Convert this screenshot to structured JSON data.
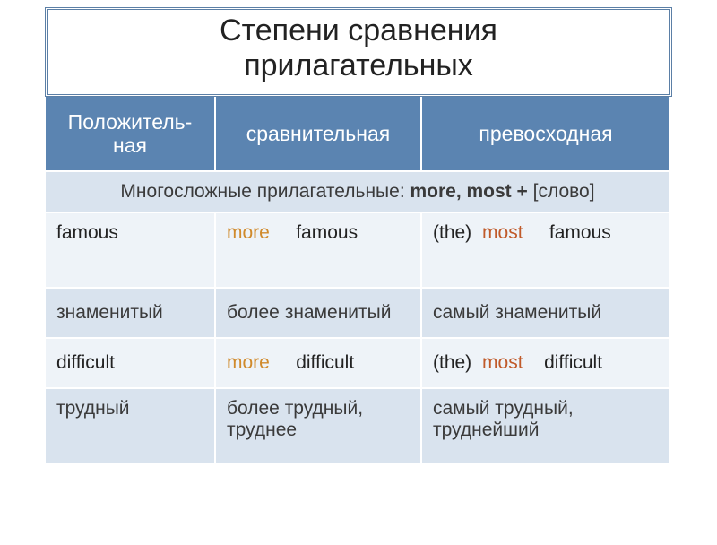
{
  "title_line1": "Степени сравнения",
  "title_line2": "прилагательных",
  "hdr_pos_line1": "Положитель-",
  "hdr_pos_line2": "ная",
  "hdr_comp": "сравнительная",
  "hdr_sup": "превосходная",
  "rule_prefix": "Многосложные прилагательные: ",
  "rule_bold": "more, most + ",
  "rule_suffix": "[слово]",
  "row1": {
    "pos": "famous",
    "comp_more": "more",
    "comp_word": "famous",
    "sup_the": "(the)",
    "sup_most": "most",
    "sup_word": "famous"
  },
  "row1_ru": {
    "pos": "знаменитый",
    "comp": "более знаменитый",
    "sup": "самый знаменитый"
  },
  "row2": {
    "pos": "difficult",
    "comp_more": "more",
    "comp_word": "difficult",
    "sup_the": "(the)",
    "sup_most": "most",
    "sup_word": "difficult"
  },
  "row2_ru": {
    "pos": "трудный",
    "comp": "более трудный, труднее",
    "sup": "самый трудный, труднейший"
  },
  "colors": {
    "header_bg": "#5b84b1",
    "light_bg": "#eef3f8",
    "dark_bg": "#d9e3ee",
    "more_color": "#d08a2c",
    "most_color": "#c05a2a",
    "frame_border": "#5b7fa6"
  }
}
